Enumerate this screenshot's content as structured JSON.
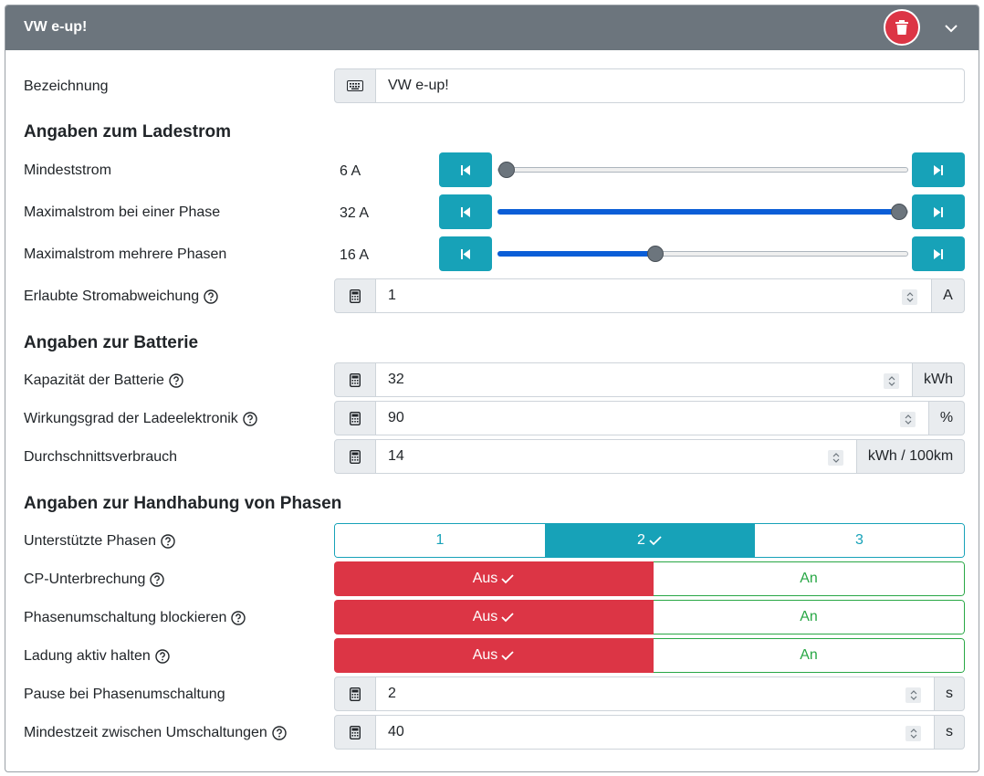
{
  "header": {
    "title": "VW e-up!",
    "delete_icon": "trash-icon",
    "collapse_icon": "chevron-down-icon"
  },
  "bezeichnung": {
    "label": "Bezeichnung",
    "value": "VW e-up!"
  },
  "sections": {
    "ladestrom": "Angaben zum Ladestrom",
    "batterie": "Angaben zur Batterie",
    "phasen": "Angaben zur Handhabung von Phasen"
  },
  "ladestrom": {
    "min": {
      "label": "Mindeststrom",
      "value": "6 A",
      "fraction": 0.0
    },
    "max_one": {
      "label": "Maximalstrom bei einer Phase",
      "value": "32 A",
      "fraction": 1.0
    },
    "max_multi": {
      "label": "Maximalstrom mehrere Phasen",
      "value": "16 A",
      "fraction": 0.38
    },
    "deviation": {
      "label": "Erlaubte Stromabweichung",
      "value": "1",
      "unit": "A"
    }
  },
  "batterie": {
    "capacity": {
      "label": "Kapazität der Batterie",
      "value": "32",
      "unit": "kWh"
    },
    "efficiency": {
      "label": "Wirkungsgrad der Ladeelektronik",
      "value": "90",
      "unit": "%"
    },
    "consumption": {
      "label": "Durchschnittsverbrauch",
      "value": "14",
      "unit": "kWh / 100km"
    }
  },
  "phasen": {
    "supported": {
      "label": "Unterstützte Phasen",
      "options": [
        "1",
        "2",
        "3"
      ],
      "selected": "2"
    },
    "cp": {
      "label": "CP-Unterbrechung",
      "off": "Aus",
      "on": "An",
      "selected": "Aus"
    },
    "block": {
      "label": "Phasenumschaltung blockieren",
      "off": "Aus",
      "on": "An",
      "selected": "Aus"
    },
    "keep": {
      "label": "Ladung aktiv halten",
      "off": "Aus",
      "on": "An",
      "selected": "Aus"
    },
    "pause": {
      "label": "Pause bei Phasenumschaltung",
      "value": "2",
      "unit": "s"
    },
    "min_time": {
      "label": "Mindestzeit zwischen Umschaltungen",
      "value": "40",
      "unit": "s"
    }
  },
  "colors": {
    "header": "#6c757d",
    "info": "#17a2b8",
    "danger": "#dc3545",
    "success": "#28a745",
    "slider": "#0b5ed7"
  }
}
